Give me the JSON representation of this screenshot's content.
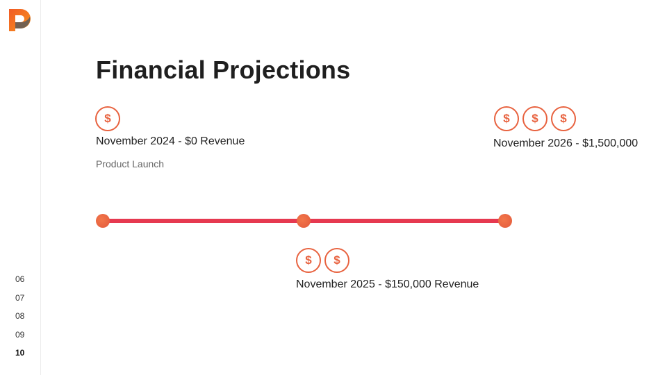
{
  "sidebar": {
    "pages": [
      {
        "label": "06",
        "active": false
      },
      {
        "label": "07",
        "active": false
      },
      {
        "label": "08",
        "active": false
      },
      {
        "label": "09",
        "active": false
      },
      {
        "label": "10",
        "active": true
      }
    ]
  },
  "slide": {
    "title": "Financial Projections",
    "milestones": [
      {
        "label": "November 2024 - $0 Revenue",
        "subtitle": "Product Launch",
        "coins": 1
      },
      {
        "label": "November 2025 - $150,000 Revenue",
        "coins": 2
      },
      {
        "label": "November 2026 - $1,500,000",
        "coins": 3
      }
    ],
    "coin_symbol": "$"
  },
  "colors": {
    "accent": "#e8623f",
    "timeline": "#e63950"
  }
}
